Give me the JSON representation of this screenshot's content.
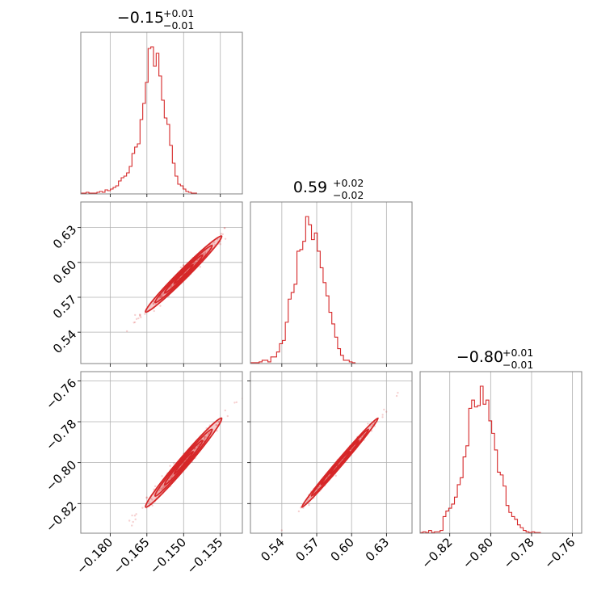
{
  "chart_data": {
    "type": "corner",
    "line_color": "#d62728",
    "grid": true,
    "parameters": [
      {
        "median": "−0.15",
        "plus": "+0.01",
        "minus": "−0.01",
        "range": [
          -0.192,
          -0.126
        ],
        "ticks": [
          -0.18,
          -0.165,
          -0.15,
          -0.135
        ],
        "tick_labels": [
          "−0.180",
          "−0.165",
          "−0.150",
          "−0.135"
        ],
        "histogram": {
          "start": -0.192,
          "bin_width": 0.0011,
          "counts": [
            0.5,
            0.5,
            1,
            0.5,
            0.5,
            0.5,
            1,
            1.5,
            1,
            2.5,
            2,
            3,
            4,
            5,
            8,
            10,
            11,
            13,
            17,
            25,
            29,
            31,
            46,
            56,
            69,
            90,
            91,
            79,
            87,
            73,
            58,
            47,
            43,
            30,
            19,
            11,
            6,
            5,
            3,
            1.5,
            1,
            0.5,
            0.5
          ]
        }
      },
      {
        "median": "0.59",
        "plus": "+0.02",
        "minus": "−0.02",
        "range": [
          0.513,
          0.652
        ],
        "ticks": [
          0.54,
          0.57,
          0.6,
          0.63
        ],
        "tick_labels": [
          "0.54",
          "0.57",
          "0.60",
          "0.63"
        ],
        "histogram": {
          "start": 0.513,
          "bin_width": 0.0025,
          "counts": [
            0.5,
            0.5,
            0.5,
            1,
            2,
            2,
            1,
            4,
            4,
            7,
            12,
            14,
            25,
            39,
            43,
            48,
            68,
            69,
            74,
            89,
            84,
            75,
            79,
            68,
            58,
            49,
            41,
            31,
            24,
            16,
            9,
            5,
            2,
            2,
            1,
            0.5
          ]
        }
      },
      {
        "median": "−0.80",
        "plus": "+0.01",
        "minus": "−0.01",
        "range": [
          -0.8345,
          -0.7555
        ],
        "ticks": [
          -0.82,
          -0.8,
          -0.78,
          -0.76
        ],
        "tick_labels": [
          "−0.82",
          "−0.80",
          "−0.78",
          "−0.76"
        ],
        "histogram": {
          "start": -0.8345,
          "bin_width": 0.0014,
          "counts": [
            0.5,
            1,
            0.5,
            2,
            0.5,
            1,
            1,
            2,
            12,
            16,
            18,
            21,
            26,
            35,
            40,
            55,
            63,
            90,
            96,
            91,
            92,
            106,
            93,
            96,
            81,
            72,
            60,
            44,
            42,
            34,
            20,
            15,
            12,
            10,
            6,
            4,
            2,
            1,
            0.5,
            1,
            0.5,
            0.5
          ]
        }
      }
    ],
    "pairs": [
      {
        "x_param": 0,
        "y_param": 1,
        "center": [
          -0.15,
          0.59
        ],
        "spread": [
          0.0078,
          0.0164
        ],
        "corr": 0.985
      },
      {
        "x_param": 0,
        "y_param": 2,
        "center": [
          -0.15,
          -0.8
        ],
        "spread": [
          0.0078,
          0.0109
        ],
        "corr": 0.985
      },
      {
        "x_param": 1,
        "y_param": 2,
        "center": [
          0.59,
          -0.8
        ],
        "spread": [
          0.0164,
          0.0109
        ],
        "corr": 0.994
      }
    ]
  }
}
